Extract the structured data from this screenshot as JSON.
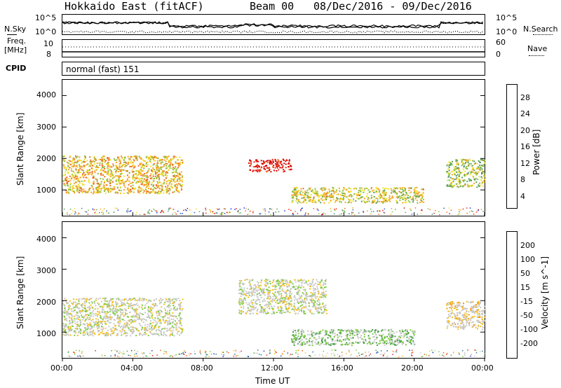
{
  "header": {
    "title": "Hokkaido East (fitACF)",
    "beam": "Beam 00",
    "date_range": "08/Dec/2016 - 09/Dec/2016"
  },
  "noise_panel": {
    "left_label": "N.Sky",
    "right_label": "N.Search",
    "left_ticks": [
      "10^5",
      "10^0"
    ],
    "right_ticks": [
      "10^5",
      "10^0"
    ]
  },
  "freq_panel": {
    "left_label_line1": "Freq.",
    "left_label_line2": "[MHz]",
    "right_label": "Nave",
    "left_ticks": [
      "10",
      "8"
    ],
    "right_ticks": [
      "60",
      "0"
    ]
  },
  "cpid_panel": {
    "label": "CPID",
    "mode": "normal (fast) 151"
  },
  "x_axis": {
    "label": "Time UT",
    "ticks": [
      "00:00",
      "04:00",
      "08:00",
      "12:00",
      "16:00",
      "20:00",
      "00:00"
    ]
  },
  "power_panel": {
    "ylabel": "Slant Range [km]",
    "yticks": [
      "1000",
      "2000",
      "3000",
      "4000"
    ],
    "colorbar_label": "Power [dB]",
    "colorbar_ticks": [
      "4",
      "8",
      "12",
      "16",
      "20",
      "24",
      "28"
    ],
    "colors": [
      "#1432ff",
      "#2a5fbf",
      "#3c8a7a",
      "#5aa05a",
      "#8bbd3c",
      "#f2e02a",
      "#f5a623",
      "#ef6a1e",
      "#e82a12",
      "#d60000"
    ]
  },
  "velocity_panel": {
    "ylabel": "Slant Range [km]",
    "yticks": [
      "1000",
      "2000",
      "3000",
      "4000"
    ],
    "colorbar_label": "Velocity [m s^-1]",
    "colorbar_ticks": [
      "200",
      "100",
      "50",
      "15",
      "-15",
      "-50",
      "-100",
      "-200"
    ],
    "colors": [
      "#1a3ccf",
      "#2a7a8f",
      "#4aa04a",
      "#7ccc3c",
      "#c8c8c8",
      "#c8c8c8",
      "#f5c020",
      "#f59a10",
      "#f06010",
      "#e8261a"
    ]
  },
  "chart_data": [
    {
      "type": "heatmap",
      "title": "Power [dB]",
      "xlabel": "Time UT",
      "ylabel": "Slant Range [km]",
      "x_range_hours": [
        0,
        24
      ],
      "y_range_km": [
        180,
        4500
      ],
      "colorbar_range": [
        0,
        30
      ],
      "regions": [
        {
          "t0": 0.0,
          "t1": 6.8,
          "r0": 900,
          "r1": 2100,
          "level": 18
        },
        {
          "t0": 10.5,
          "t1": 13.0,
          "r0": 1600,
          "r1": 2000,
          "level": 28
        },
        {
          "t0": 13.0,
          "t1": 20.5,
          "r0": 600,
          "r1": 1100,
          "level": 16
        },
        {
          "t0": 21.8,
          "t1": 24.0,
          "r0": 1100,
          "r1": 2000,
          "level": 14
        }
      ]
    },
    {
      "type": "heatmap",
      "title": "Velocity [m s^-1]",
      "xlabel": "Time UT",
      "ylabel": "Slant Range [km]",
      "x_range_hours": [
        0,
        24
      ],
      "y_range_km": [
        180,
        4500
      ],
      "colorbar_range": [
        -200,
        200
      ],
      "regions": [
        {
          "t0": 0.0,
          "t1": 6.8,
          "r0": 900,
          "r1": 2100,
          "level": 0
        },
        {
          "t0": 10.0,
          "t1": 15.0,
          "r0": 1600,
          "r1": 2700,
          "level": 0
        },
        {
          "t0": 13.0,
          "t1": 20.0,
          "r0": 600,
          "r1": 1100,
          "level": -50
        },
        {
          "t0": 21.8,
          "t1": 24.0,
          "r0": 1100,
          "r1": 2000,
          "level": 30
        }
      ]
    }
  ]
}
